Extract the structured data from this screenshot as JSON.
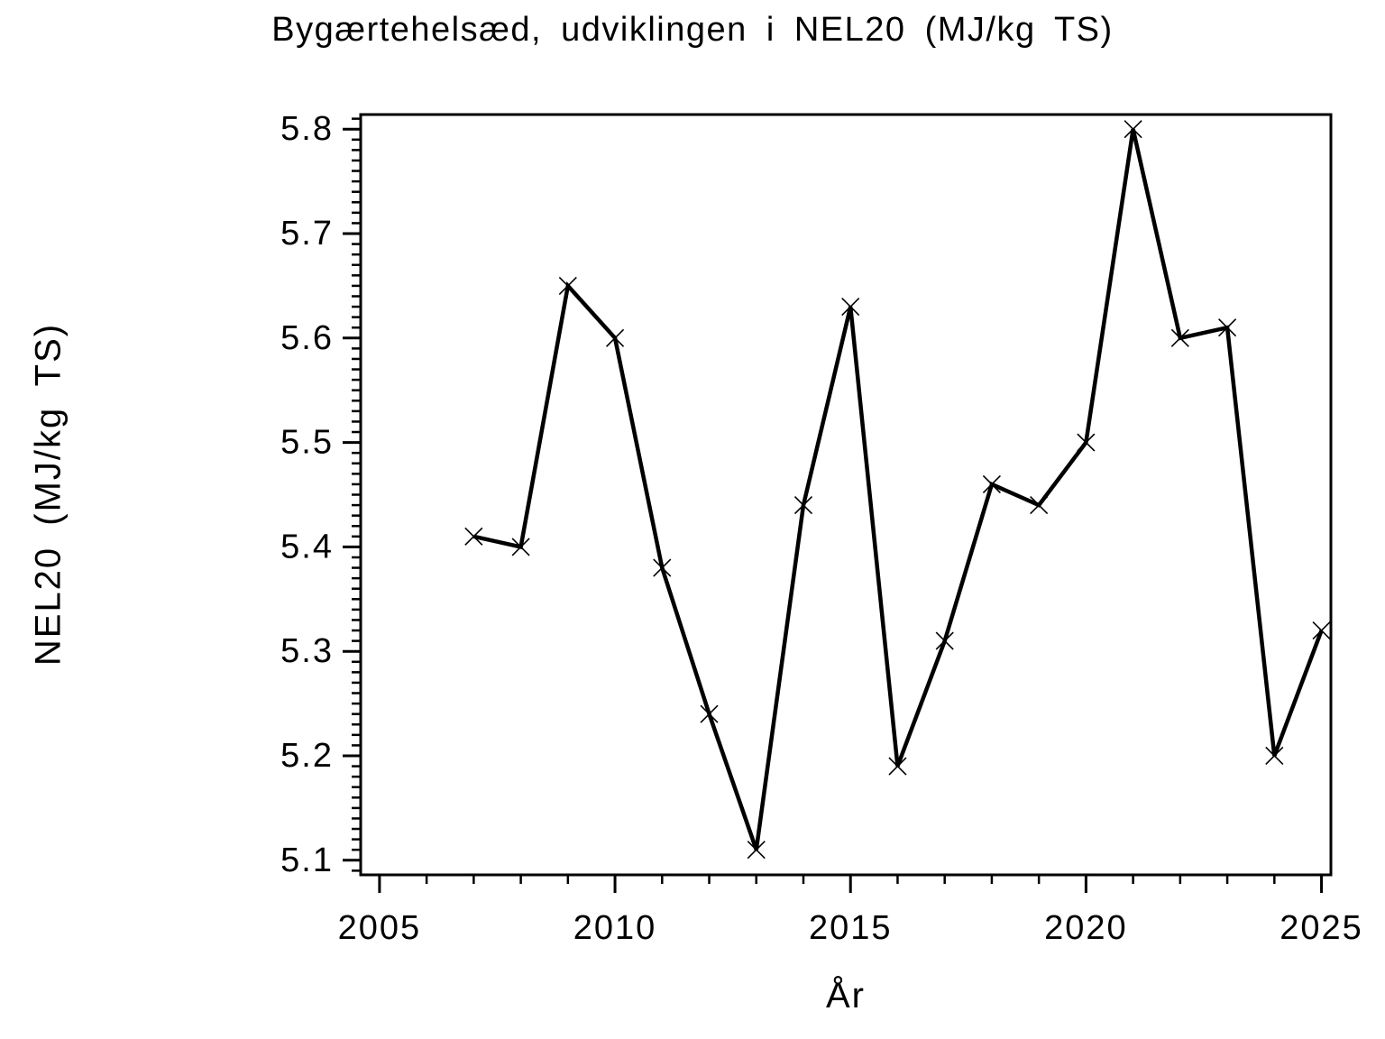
{
  "page": {
    "title": "Bygærtehelsæd, udviklingen i NEL20 (MJ/kg TS)"
  },
  "chart_data": {
    "type": "line",
    "title": "Bygærtehelsæd, udviklingen i NEL20 (MJ/kg TS)",
    "xlabel": "År",
    "ylabel": "NEL20 (MJ/kg TS)",
    "x": [
      2007,
      2008,
      2009,
      2010,
      2011,
      2012,
      2013,
      2014,
      2015,
      2016,
      2017,
      2018,
      2019,
      2020,
      2021,
      2022,
      2023,
      2024,
      2025
    ],
    "values": [
      5.41,
      5.4,
      5.65,
      5.6,
      5.38,
      5.24,
      5.11,
      5.44,
      5.63,
      5.19,
      5.31,
      5.46,
      5.44,
      5.5,
      5.8,
      5.6,
      5.61,
      5.2,
      5.32
    ],
    "series_name": "NEL20",
    "marker": "x",
    "grid": false,
    "legend": false,
    "line_color": "#000000",
    "frame_color": "#000000",
    "background_color": "#ffffff",
    "text_color": "#000000",
    "xlim": [
      2004.6,
      2025.2
    ],
    "ylim": [
      5.086,
      5.814
    ],
    "x_major_ticks": [
      2005,
      2010,
      2015,
      2020,
      2025
    ],
    "x_minor_step": 1,
    "y_major_ticks": [
      5.1,
      5.2,
      5.3,
      5.4,
      5.5,
      5.6,
      5.7,
      5.8
    ],
    "y_minor_step": 0.01,
    "y_tick_decimals": 1
  }
}
